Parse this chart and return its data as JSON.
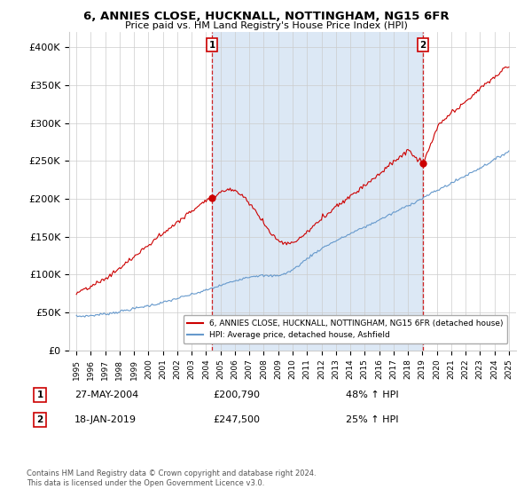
{
  "title": "6, ANNIES CLOSE, HUCKNALL, NOTTINGHAM, NG15 6FR",
  "subtitle": "Price paid vs. HM Land Registry's House Price Index (HPI)",
  "ylabel_ticks": [
    "£0",
    "£50K",
    "£100K",
    "£150K",
    "£200K",
    "£250K",
    "£300K",
    "£350K",
    "£400K"
  ],
  "ytick_values": [
    0,
    50000,
    100000,
    150000,
    200000,
    250000,
    300000,
    350000,
    400000
  ],
  "ylim": [
    0,
    420000
  ],
  "sale1_date": "27-MAY-2004",
  "sale1_price": 200790,
  "sale1_hpi": "48% ↑ HPI",
  "sale1_x": 2004.4,
  "sale2_date": "18-JAN-2019",
  "sale2_price": 247500,
  "sale2_hpi": "25% ↑ HPI",
  "sale2_x": 2019.05,
  "legend_label1": "6, ANNIES CLOSE, HUCKNALL, NOTTINGHAM, NG15 6FR (detached house)",
  "legend_label2": "HPI: Average price, detached house, Ashfield",
  "footnote": "Contains HM Land Registry data © Crown copyright and database right 2024.\nThis data is licensed under the Open Government Licence v3.0.",
  "red_color": "#cc0000",
  "blue_color": "#6699cc",
  "shade_color": "#dce8f5",
  "bg_color": "#ffffff",
  "grid_color": "#cccccc"
}
